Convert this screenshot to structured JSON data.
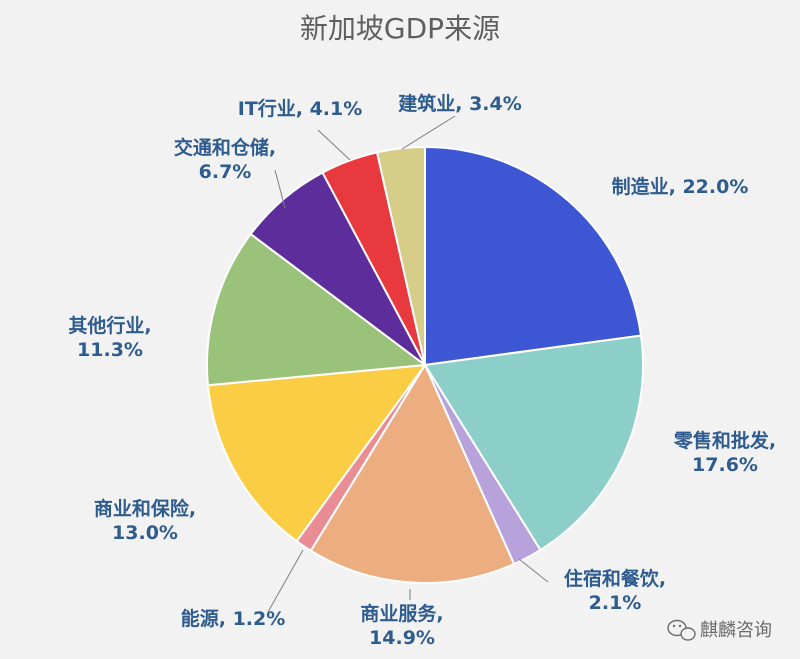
{
  "chart_data": {
    "type": "pie",
    "title": "新加坡GDP来源",
    "slices": [
      {
        "label": "制造业",
        "value": 22.0,
        "value_text": "22.0%",
        "color": "#3d56d4"
      },
      {
        "label": "零售和批发",
        "value": 17.6,
        "value_text": "17.6%",
        "color": "#8ccfc8"
      },
      {
        "label": "住宿和餐饮",
        "value": 2.1,
        "value_text": "2.1%",
        "color": "#b7a2dc"
      },
      {
        "label": "商业服务",
        "value": 14.9,
        "value_text": "14.9%",
        "color": "#ecae80"
      },
      {
        "label": "能源",
        "value": 1.2,
        "value_text": "1.2%",
        "color": "#e98c94"
      },
      {
        "label": "商业和保险",
        "value": 13.0,
        "value_text": "13.0%",
        "color": "#fbcd45"
      },
      {
        "label": "其他行业",
        "value": 11.3,
        "value_text": "11.3%",
        "color": "#9ac27a"
      },
      {
        "label": "交通和仓储",
        "value": 6.7,
        "value_text": "6.7%",
        "color": "#5e2d9c"
      },
      {
        "label": "IT行业",
        "value": 4.1,
        "value_text": "4.1%",
        "color": "#e8393e"
      },
      {
        "label": "建筑业",
        "value": 3.4,
        "value_text": "3.4%",
        "color": "#d6cd89"
      }
    ]
  },
  "watermark": {
    "text": "麒麟咨询",
    "icon": "wechat-icon"
  }
}
